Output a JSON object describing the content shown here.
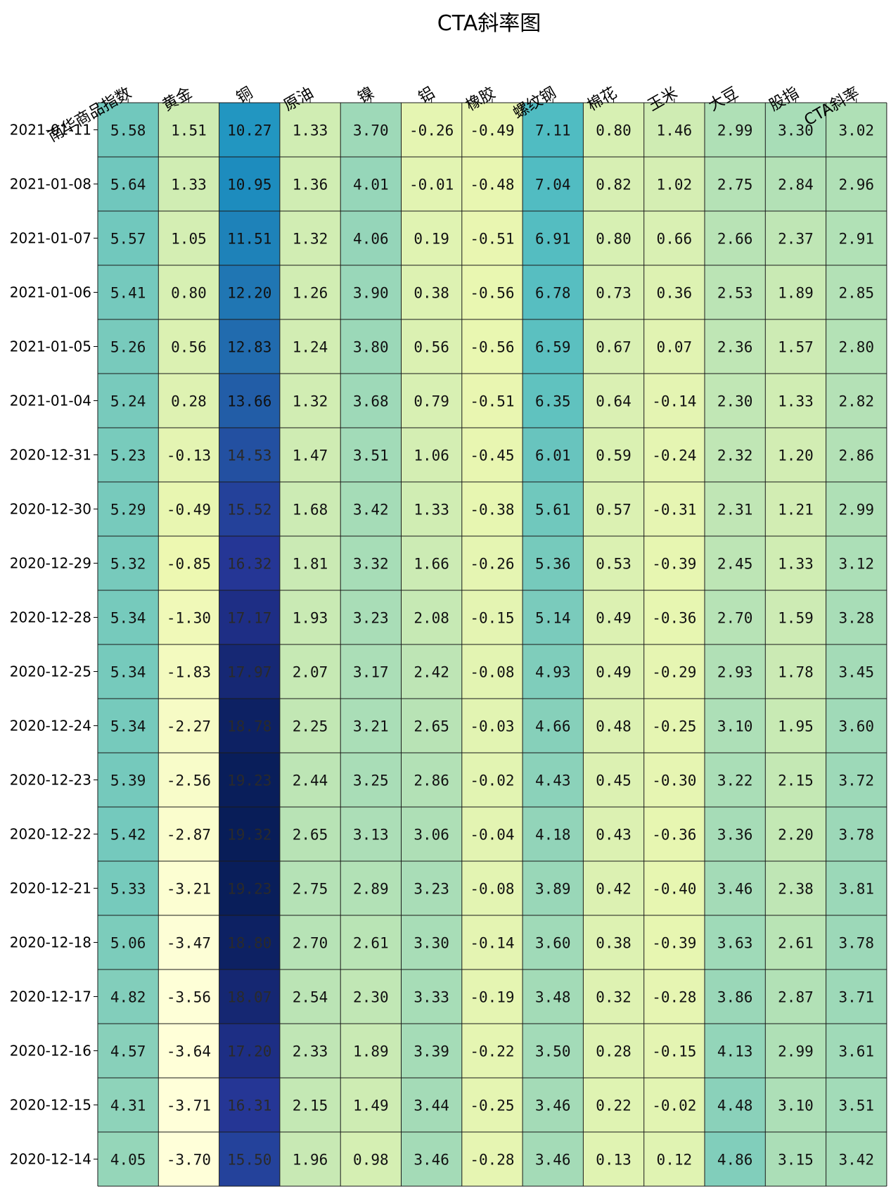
{
  "chart_data": {
    "type": "heatmap",
    "title": "CTA斜率图",
    "columns": [
      "南华商品指数",
      "黄金",
      "铜",
      "原油",
      "镍",
      "铝",
      "橡胶",
      "螺纹钢",
      "棉花",
      "玉米",
      "大豆",
      "股指",
      "CTA斜率"
    ],
    "rows": [
      "2021-01-11",
      "2021-01-08",
      "2021-01-07",
      "2021-01-06",
      "2021-01-05",
      "2021-01-04",
      "2020-12-31",
      "2020-12-30",
      "2020-12-29",
      "2020-12-28",
      "2020-12-25",
      "2020-12-24",
      "2020-12-23",
      "2020-12-22",
      "2020-12-21",
      "2020-12-18",
      "2020-12-17",
      "2020-12-16",
      "2020-12-15",
      "2020-12-14"
    ],
    "values": [
      [
        "5.58",
        "1.51",
        "10.27",
        "1.33",
        "3.70",
        "-0.26",
        "-0.49",
        "7.11",
        "0.80",
        "1.46",
        "2.99",
        "3.30",
        "3.02"
      ],
      [
        "5.64",
        "1.33",
        "10.95",
        "1.36",
        "4.01",
        "-0.01",
        "-0.48",
        "7.04",
        "0.82",
        "1.02",
        "2.75",
        "2.84",
        "2.96"
      ],
      [
        "5.57",
        "1.05",
        "11.51",
        "1.32",
        "4.06",
        "0.19",
        "-0.51",
        "6.91",
        "0.80",
        "0.66",
        "2.66",
        "2.37",
        "2.91"
      ],
      [
        "5.41",
        "0.80",
        "12.20",
        "1.26",
        "3.90",
        "0.38",
        "-0.56",
        "6.78",
        "0.73",
        "0.36",
        "2.53",
        "1.89",
        "2.85"
      ],
      [
        "5.26",
        "0.56",
        "12.83",
        "1.24",
        "3.80",
        "0.56",
        "-0.56",
        "6.59",
        "0.67",
        "0.07",
        "2.36",
        "1.57",
        "2.80"
      ],
      [
        "5.24",
        "0.28",
        "13.66",
        "1.32",
        "3.68",
        "0.79",
        "-0.51",
        "6.35",
        "0.64",
        "-0.14",
        "2.30",
        "1.33",
        "2.82"
      ],
      [
        "5.23",
        "-0.13",
        "14.53",
        "1.47",
        "3.51",
        "1.06",
        "-0.45",
        "6.01",
        "0.59",
        "-0.24",
        "2.32",
        "1.20",
        "2.86"
      ],
      [
        "5.29",
        "-0.49",
        "15.52",
        "1.68",
        "3.42",
        "1.33",
        "-0.38",
        "5.61",
        "0.57",
        "-0.31",
        "2.31",
        "1.21",
        "2.99"
      ],
      [
        "5.32",
        "-0.85",
        "16.32",
        "1.81",
        "3.32",
        "1.66",
        "-0.26",
        "5.36",
        "0.53",
        "-0.39",
        "2.45",
        "1.33",
        "3.12"
      ],
      [
        "5.34",
        "-1.30",
        "17.17",
        "1.93",
        "3.23",
        "2.08",
        "-0.15",
        "5.14",
        "0.49",
        "-0.36",
        "2.70",
        "1.59",
        "3.28"
      ],
      [
        "5.34",
        "-1.83",
        "17.97",
        "2.07",
        "3.17",
        "2.42",
        "-0.08",
        "4.93",
        "0.49",
        "-0.29",
        "2.93",
        "1.78",
        "3.45"
      ],
      [
        "5.34",
        "-2.27",
        "18.78",
        "2.25",
        "3.21",
        "2.65",
        "-0.03",
        "4.66",
        "0.48",
        "-0.25",
        "3.10",
        "1.95",
        "3.60"
      ],
      [
        "5.39",
        "-2.56",
        "19.23",
        "2.44",
        "3.25",
        "2.86",
        "-0.02",
        "4.43",
        "0.45",
        "-0.30",
        "3.22",
        "2.15",
        "3.72"
      ],
      [
        "5.42",
        "-2.87",
        "19.32",
        "2.65",
        "3.13",
        "3.06",
        "-0.04",
        "4.18",
        "0.43",
        "-0.36",
        "3.36",
        "2.20",
        "3.78"
      ],
      [
        "5.33",
        "-3.21",
        "19.23",
        "2.75",
        "2.89",
        "3.23",
        "-0.08",
        "3.89",
        "0.42",
        "-0.40",
        "3.46",
        "2.38",
        "3.81"
      ],
      [
        "5.06",
        "-3.47",
        "18.80",
        "2.70",
        "2.61",
        "3.30",
        "-0.14",
        "3.60",
        "0.38",
        "-0.39",
        "3.63",
        "2.61",
        "3.78"
      ],
      [
        "4.82",
        "-3.56",
        "18.07",
        "2.54",
        "2.30",
        "3.33",
        "-0.19",
        "3.48",
        "0.32",
        "-0.28",
        "3.86",
        "2.87",
        "3.71"
      ],
      [
        "4.57",
        "-3.64",
        "17.20",
        "2.33",
        "1.89",
        "3.39",
        "-0.22",
        "3.50",
        "0.28",
        "-0.15",
        "4.13",
        "2.99",
        "3.61"
      ],
      [
        "4.31",
        "-3.71",
        "16.31",
        "2.15",
        "1.49",
        "3.44",
        "-0.25",
        "3.46",
        "0.22",
        "-0.02",
        "4.48",
        "3.10",
        "3.51"
      ],
      [
        "4.05",
        "-3.70",
        "15.50",
        "1.96",
        "0.98",
        "3.46",
        "-0.28",
        "3.46",
        "0.13",
        "0.12",
        "4.86",
        "3.15",
        "3.42"
      ]
    ],
    "colormap": "YlGnBu",
    "value_range": [
      -3.71,
      19.32
    ],
    "colorbar": false,
    "cell_borders": true
  }
}
